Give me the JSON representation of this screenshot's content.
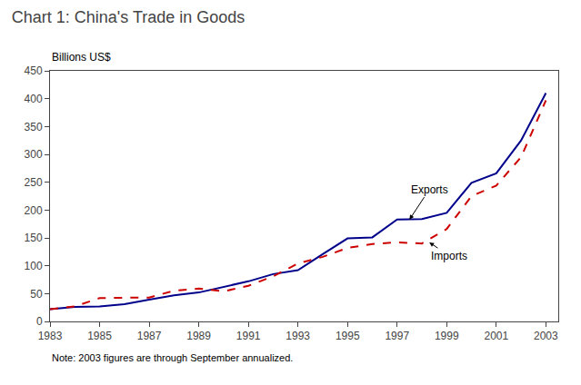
{
  "chart_data": {
    "type": "line",
    "title": "Chart 1: China's Trade in Goods",
    "ylabel": "Billions US$",
    "note": "Note: 2003 figures are through September annualized.",
    "x": [
      1983,
      1984,
      1985,
      1986,
      1987,
      1988,
      1989,
      1990,
      1991,
      1992,
      1993,
      1994,
      1995,
      1996,
      1997,
      1998,
      1999,
      2000,
      2001,
      2002,
      2003
    ],
    "series": [
      {
        "name": "Exports",
        "color": "#00008B",
        "line_style": "solid",
        "values": [
          22,
          26,
          27,
          31,
          39,
          47,
          52,
          62,
          72,
          85,
          92,
          121,
          149,
          151,
          183,
          184,
          195,
          249,
          266,
          325,
          410
        ]
      },
      {
        "name": "Imports",
        "color": "#CC0000",
        "line_style": "dashed",
        "values": [
          22,
          27,
          42,
          43,
          43,
          55,
          59,
          54,
          64,
          81,
          104,
          116,
          132,
          139,
          142,
          140,
          166,
          225,
          244,
          295,
          397
        ]
      }
    ],
    "annotations": [
      {
        "text": "Exports",
        "x": 1997.5,
        "y": 183,
        "text_x": 1998.3,
        "text_y": 237
      },
      {
        "text": "Imports",
        "x": 1998.3,
        "y": 142,
        "text_x": 1999.1,
        "text_y": 118
      }
    ],
    "xlim": [
      1983,
      2003.5
    ],
    "xticks": [
      1983,
      1985,
      1987,
      1989,
      1991,
      1993,
      1995,
      1997,
      1999,
      2001,
      2003
    ],
    "ylim": [
      0,
      450
    ],
    "yticks": [
      0,
      50,
      100,
      150,
      200,
      250,
      300,
      350,
      400,
      450
    ],
    "grid": false
  }
}
